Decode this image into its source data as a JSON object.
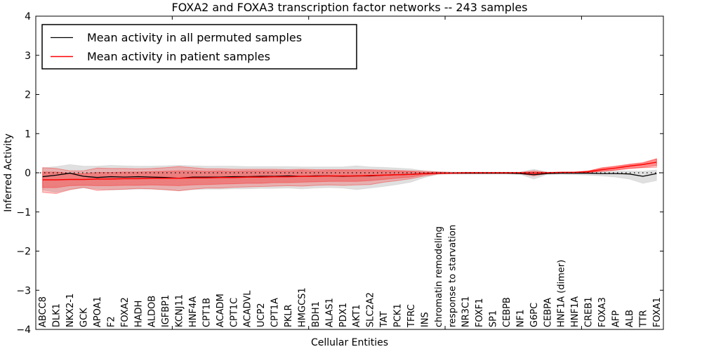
{
  "title": "FOXA2 and FOXA3 transcription factor networks -- 243 samples",
  "legend": [
    {
      "label": "Mean activity in all permuted samples",
      "color": "#000000"
    },
    {
      "label": "Mean activity in patient samples",
      "color": "#ff0000"
    }
  ],
  "axes": {
    "xlabel": "Cellular Entities",
    "ylabel": "Inferred Activity",
    "yticks": [
      4,
      3,
      2,
      1,
      0,
      -1,
      -2,
      -3,
      -4
    ],
    "xticks_positions": [
      10,
      20,
      30,
      40
    ],
    "ylim": [
      -4,
      4
    ]
  },
  "chart_data": {
    "type": "line",
    "title": "FOXA2 and FOXA3 transcription factor networks -- 243 samples",
    "xlabel": "Cellular Entities",
    "ylabel": "Inferred Activity",
    "ylim": [
      -4,
      4
    ],
    "grid": false,
    "legend_position": "upper left",
    "zero_line": true,
    "categories": [
      "ABCC8",
      "DLK1",
      "NKX2-1",
      "GCK",
      "APOA1",
      "F2",
      "FOXA2",
      "HADH",
      "ALDOB",
      "IGFBP1",
      "KCNJ11",
      "HNF4A",
      "CPT1B",
      "ACADM",
      "CPT1C",
      "ACADVL",
      "UCP2",
      "CPT1A",
      "PKLR",
      "HMGCS1",
      "BDH1",
      "ALAS1",
      "PDX1",
      "AKT1",
      "SLC2A2",
      "TAT",
      "PCK1",
      "TFRC",
      "INS",
      "chromatin remodeling",
      "response to starvation",
      "NR3C1",
      "FOXF1",
      "SP1",
      "CEBPB",
      "NF1",
      "G6PC",
      "CEBPA",
      "HNF1A (dimer)",
      "HNF1A",
      "CREB1",
      "FOXA3",
      "AFP",
      "ALB",
      "TTR",
      "FOXA1"
    ],
    "series": [
      {
        "name": "Mean activity in all permuted samples",
        "color": "#000000",
        "width": 1.3,
        "values": [
          -0.1,
          -0.06,
          -0.01,
          -0.09,
          -0.12,
          -0.1,
          -0.11,
          -0.1,
          -0.11,
          -0.12,
          -0.14,
          -0.11,
          -0.11,
          -0.11,
          -0.1,
          -0.1,
          -0.09,
          -0.09,
          -0.08,
          -0.09,
          -0.08,
          -0.08,
          -0.09,
          -0.08,
          -0.08,
          -0.06,
          -0.05,
          -0.04,
          -0.02,
          -0.01,
          -0.01,
          -0.01,
          -0.01,
          -0.01,
          -0.01,
          -0.02,
          -0.05,
          -0.02,
          -0.01,
          -0.01,
          -0.01,
          -0.02,
          -0.02,
          -0.03,
          -0.09,
          -0.02
        ]
      },
      {
        "name": "Mean activity in patient samples",
        "color": "#ff0000",
        "width": 1.5,
        "values": [
          -0.18,
          -0.18,
          -0.17,
          -0.17,
          -0.16,
          -0.16,
          -0.15,
          -0.15,
          -0.14,
          -0.14,
          -0.14,
          -0.13,
          -0.13,
          -0.12,
          -0.12,
          -0.11,
          -0.11,
          -0.1,
          -0.1,
          -0.09,
          -0.09,
          -0.08,
          -0.08,
          -0.08,
          -0.07,
          -0.06,
          -0.05,
          -0.04,
          -0.02,
          -0.01,
          -0.01,
          0.0,
          0.0,
          0.0,
          0.0,
          0.0,
          -0.01,
          0.0,
          0.01,
          0.01,
          0.03,
          0.08,
          0.12,
          0.17,
          0.21,
          0.27
        ]
      }
    ],
    "bands": [
      {
        "name": "permuted-samples-range",
        "color": "#999999",
        "opacity": 0.3,
        "edge_opacity": 0.18,
        "upper": [
          0.13,
          0.16,
          0.21,
          0.17,
          0.17,
          0.19,
          0.18,
          0.17,
          0.17,
          0.18,
          0.19,
          0.18,
          0.17,
          0.17,
          0.17,
          0.16,
          0.16,
          0.16,
          0.16,
          0.15,
          0.15,
          0.15,
          0.15,
          0.18,
          0.15,
          0.14,
          0.12,
          0.1,
          0.05,
          0.03,
          0.02,
          0.02,
          0.02,
          0.02,
          0.02,
          0.02,
          0.09,
          0.02,
          0.02,
          0.02,
          0.03,
          0.04,
          0.05,
          0.05,
          0.04,
          0.07
        ],
        "lower": [
          -0.44,
          -0.5,
          -0.43,
          -0.39,
          -0.42,
          -0.44,
          -0.43,
          -0.42,
          -0.42,
          -0.44,
          -0.46,
          -0.43,
          -0.42,
          -0.42,
          -0.41,
          -0.41,
          -0.4,
          -0.4,
          -0.39,
          -0.41,
          -0.39,
          -0.38,
          -0.39,
          -0.43,
          -0.39,
          -0.35,
          -0.3,
          -0.24,
          -0.12,
          -0.04,
          -0.03,
          -0.03,
          -0.03,
          -0.03,
          -0.03,
          -0.04,
          -0.16,
          -0.04,
          -0.04,
          -0.05,
          -0.06,
          -0.08,
          -0.11,
          -0.16,
          -0.27,
          -0.2
        ]
      },
      {
        "name": "patient-samples-range-outer",
        "color": "#ff0000",
        "opacity": 0.22,
        "edge_opacity": 0.35,
        "upper": [
          0.13,
          0.11,
          0.05,
          0.05,
          0.12,
          0.11,
          0.11,
          0.1,
          0.11,
          0.13,
          0.16,
          0.13,
          0.1,
          0.1,
          0.09,
          0.09,
          0.09,
          0.09,
          0.08,
          0.09,
          0.08,
          0.08,
          0.08,
          0.08,
          0.08,
          0.07,
          0.06,
          0.05,
          0.04,
          0.02,
          0.01,
          0.01,
          0.01,
          0.01,
          0.01,
          0.01,
          0.05,
          0.01,
          0.01,
          0.02,
          0.04,
          0.13,
          0.17,
          0.22,
          0.26,
          0.36
        ],
        "lower": [
          -0.5,
          -0.53,
          -0.43,
          -0.37,
          -0.45,
          -0.43,
          -0.42,
          -0.4,
          -0.41,
          -0.43,
          -0.46,
          -0.42,
          -0.39,
          -0.39,
          -0.37,
          -0.36,
          -0.35,
          -0.34,
          -0.33,
          -0.34,
          -0.32,
          -0.31,
          -0.32,
          -0.31,
          -0.3,
          -0.24,
          -0.2,
          -0.15,
          -0.08,
          -0.03,
          -0.02,
          -0.02,
          -0.02,
          -0.02,
          -0.02,
          -0.02,
          -0.08,
          -0.02,
          -0.01,
          0.0,
          0.01,
          0.04,
          0.07,
          0.11,
          0.13,
          0.14
        ]
      },
      {
        "name": "patient-samples-range-inner",
        "color": "#ff0000",
        "opacity": 0.28,
        "edge_opacity": 0.3,
        "upper": [
          0.02,
          0.02,
          -0.01,
          -0.02,
          0.01,
          0.01,
          0.02,
          0.02,
          0.03,
          0.04,
          0.05,
          0.05,
          0.04,
          0.05,
          0.04,
          0.05,
          0.05,
          0.05,
          0.05,
          0.06,
          0.05,
          0.06,
          0.06,
          0.06,
          0.06,
          0.05,
          0.04,
          0.03,
          0.01,
          0.01,
          0.0,
          0.01,
          0.01,
          0.01,
          0.01,
          0.01,
          0.02,
          0.01,
          0.02,
          0.02,
          0.05,
          0.12,
          0.16,
          0.21,
          0.25,
          0.35
        ],
        "lower": [
          -0.38,
          -0.38,
          -0.33,
          -0.32,
          -0.33,
          -0.33,
          -0.32,
          -0.32,
          -0.31,
          -0.32,
          -0.33,
          -0.31,
          -0.3,
          -0.29,
          -0.28,
          -0.27,
          -0.27,
          -0.25,
          -0.25,
          -0.24,
          -0.23,
          -0.22,
          -0.22,
          -0.22,
          -0.2,
          -0.17,
          -0.14,
          -0.11,
          -0.05,
          -0.02,
          -0.01,
          -0.01,
          -0.01,
          -0.01,
          -0.01,
          -0.01,
          -0.04,
          -0.01,
          0.0,
          0.0,
          0.01,
          0.04,
          0.07,
          0.11,
          0.14,
          0.19
        ]
      }
    ]
  }
}
